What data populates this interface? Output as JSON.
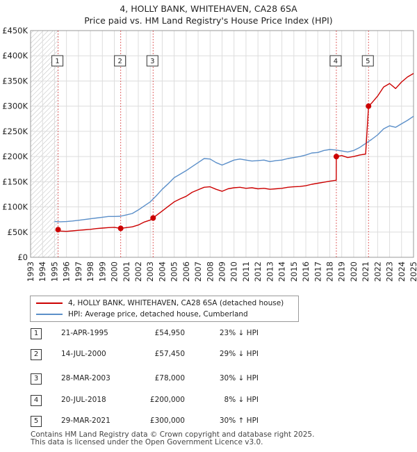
{
  "title": "4, HOLLY BANK, WHITEHAVEN, CA28 6SA",
  "subtitle": "Price paid vs. HM Land Registry's House Price Index (HPI)",
  "colors": {
    "property": "#cc0000",
    "hpi": "#5b8fc9",
    "grid": "#dddddd",
    "hatch": "#bbbbbb",
    "marker_line": "#cc0000"
  },
  "legend": {
    "property_label": "4, HOLLY BANK, WHITEHAVEN, CA28 6SA (detached house)",
    "hpi_label": "HPI: Average price, detached house, Cumberland"
  },
  "sales": [
    {
      "num": "1",
      "date": "21-APR-1995",
      "price": "£54,950",
      "hpi": "23% ↓ HPI"
    },
    {
      "num": "2",
      "date": "14-JUL-2000",
      "price": "£57,450",
      "hpi": "29% ↓ HPI"
    },
    {
      "num": "3",
      "date": "28-MAR-2003",
      "price": "£78,000",
      "hpi": "30% ↓ HPI"
    },
    {
      "num": "4",
      "date": "20-JUL-2018",
      "price": "£200,000",
      "hpi": "8% ↓ HPI"
    },
    {
      "num": "5",
      "date": "29-MAR-2021",
      "price": "£300,000",
      "hpi": "30% ↑ HPI"
    }
  ],
  "footer_line1": "Contains HM Land Registry data © Crown copyright and database right 2025.",
  "footer_line2": "This data is licensed under the Open Government Licence v3.0.",
  "chart_data": {
    "type": "line",
    "title": "4, HOLLY BANK, WHITEHAVEN, CA28 6SA",
    "subtitle": "Price paid vs. HM Land Registry's House Price Index (HPI)",
    "xlabel": "",
    "ylabel": "",
    "xlim": [
      1993,
      2025
    ],
    "ylim": [
      0,
      450000
    ],
    "grid": true,
    "legend_position": "bottom",
    "x_ticks": [
      "1993",
      "1994",
      "1995",
      "1996",
      "1997",
      "1998",
      "1999",
      "2000",
      "2001",
      "2002",
      "2003",
      "2004",
      "2005",
      "2006",
      "2007",
      "2008",
      "2009",
      "2010",
      "2011",
      "2012",
      "2013",
      "2014",
      "2015",
      "2016",
      "2017",
      "2018",
      "2019",
      "2020",
      "2021",
      "2022",
      "2023",
      "2024",
      "2025"
    ],
    "y_ticks": [
      {
        "value": 0,
        "label": "£0"
      },
      {
        "value": 50000,
        "label": "£50K"
      },
      {
        "value": 100000,
        "label": "£100K"
      },
      {
        "value": 150000,
        "label": "£150K"
      },
      {
        "value": 200000,
        "label": "£200K"
      },
      {
        "value": 250000,
        "label": "£250K"
      },
      {
        "value": 300000,
        "label": "£300K"
      },
      {
        "value": 350000,
        "label": "£350K"
      },
      {
        "value": 400000,
        "label": "£400K"
      },
      {
        "value": 450000,
        "label": "£450K"
      }
    ],
    "series": [
      {
        "name": "4, HOLLY BANK, WHITEHAVEN, CA28 6SA (detached house)",
        "color": "#cc0000",
        "points": [
          [
            1995.3,
            54950
          ],
          [
            1995.5,
            52000
          ],
          [
            1996,
            51500
          ],
          [
            1996.5,
            52500
          ],
          [
            1997,
            53500
          ],
          [
            1997.5,
            54500
          ],
          [
            1998,
            55500
          ],
          [
            1998.5,
            57000
          ],
          [
            1999,
            58000
          ],
          [
            1999.5,
            59000
          ],
          [
            2000,
            59500
          ],
          [
            2000.53,
            57450
          ],
          [
            2001,
            59000
          ],
          [
            2001.5,
            60500
          ],
          [
            2002,
            64000
          ],
          [
            2002.5,
            70000
          ],
          [
            2003,
            74000
          ],
          [
            2003.24,
            78000
          ],
          [
            2003.5,
            83000
          ],
          [
            2004,
            92000
          ],
          [
            2004.5,
            101000
          ],
          [
            2005,
            110000
          ],
          [
            2005.5,
            116000
          ],
          [
            2006,
            121000
          ],
          [
            2006.5,
            129000
          ],
          [
            2007,
            134000
          ],
          [
            2007.5,
            139000
          ],
          [
            2008,
            140000
          ],
          [
            2008.5,
            135000
          ],
          [
            2009,
            131000
          ],
          [
            2009.5,
            136000
          ],
          [
            2010,
            138000
          ],
          [
            2010.5,
            139000
          ],
          [
            2011,
            137000
          ],
          [
            2011.5,
            138000
          ],
          [
            2012,
            136000
          ],
          [
            2012.5,
            137000
          ],
          [
            2013,
            135000
          ],
          [
            2013.5,
            136000
          ],
          [
            2014,
            137000
          ],
          [
            2014.5,
            139000
          ],
          [
            2015,
            140000
          ],
          [
            2015.5,
            140500
          ],
          [
            2016,
            142000
          ],
          [
            2016.5,
            145000
          ],
          [
            2017,
            147000
          ],
          [
            2017.5,
            149000
          ],
          [
            2018,
            151000
          ],
          [
            2018.54,
            153000
          ],
          [
            2018.55,
            200000
          ],
          [
            2019,
            202000
          ],
          [
            2019.5,
            198000
          ],
          [
            2020,
            200000
          ],
          [
            2020.5,
            203000
          ],
          [
            2021,
            205000
          ],
          [
            2021.24,
            300000
          ],
          [
            2021.5,
            306000
          ],
          [
            2022,
            320000
          ],
          [
            2022.5,
            338000
          ],
          [
            2023,
            345000
          ],
          [
            2023.5,
            335000
          ],
          [
            2024,
            348000
          ],
          [
            2024.5,
            358000
          ],
          [
            2025,
            365000
          ]
        ]
      },
      {
        "name": "HPI: Average price, detached house, Cumberland",
        "color": "#5b8fc9",
        "points": [
          [
            1995,
            71000
          ],
          [
            1995.5,
            70500
          ],
          [
            1996,
            71000
          ],
          [
            1996.5,
            72000
          ],
          [
            1997,
            73500
          ],
          [
            1997.5,
            75000
          ],
          [
            1998,
            76500
          ],
          [
            1998.5,
            78000
          ],
          [
            1999,
            79500
          ],
          [
            1999.5,
            81000
          ],
          [
            2000,
            81000
          ],
          [
            2000.5,
            81500
          ],
          [
            2001,
            84000
          ],
          [
            2001.5,
            87000
          ],
          [
            2002,
            94000
          ],
          [
            2002.5,
            102000
          ],
          [
            2003,
            110000
          ],
          [
            2003.5,
            122000
          ],
          [
            2004,
            135000
          ],
          [
            2004.5,
            146000
          ],
          [
            2005,
            158000
          ],
          [
            2005.5,
            165000
          ],
          [
            2006,
            172000
          ],
          [
            2006.5,
            180000
          ],
          [
            2007,
            188000
          ],
          [
            2007.5,
            196000
          ],
          [
            2008,
            195000
          ],
          [
            2008.5,
            188000
          ],
          [
            2009,
            183000
          ],
          [
            2009.5,
            188000
          ],
          [
            2010,
            193000
          ],
          [
            2010.5,
            195000
          ],
          [
            2011,
            193000
          ],
          [
            2011.5,
            191000
          ],
          [
            2012,
            192000
          ],
          [
            2012.5,
            193000
          ],
          [
            2013,
            190000
          ],
          [
            2013.5,
            192000
          ],
          [
            2014,
            193000
          ],
          [
            2014.5,
            196000
          ],
          [
            2015,
            198000
          ],
          [
            2015.5,
            200000
          ],
          [
            2016,
            203000
          ],
          [
            2016.5,
            207000
          ],
          [
            2017,
            208000
          ],
          [
            2017.5,
            212000
          ],
          [
            2018,
            214000
          ],
          [
            2018.5,
            213000
          ],
          [
            2019,
            211000
          ],
          [
            2019.5,
            209000
          ],
          [
            2020,
            212000
          ],
          [
            2020.5,
            218000
          ],
          [
            2021,
            226000
          ],
          [
            2021.5,
            234000
          ],
          [
            2022,
            243000
          ],
          [
            2022.5,
            255000
          ],
          [
            2023,
            261000
          ],
          [
            2023.5,
            258000
          ],
          [
            2024,
            265000
          ],
          [
            2024.5,
            272000
          ],
          [
            2025,
            280000
          ]
        ]
      }
    ],
    "sale_markers": [
      {
        "label": "1",
        "x": 1995.3,
        "y": 54950
      },
      {
        "label": "2",
        "x": 2000.53,
        "y": 57450
      },
      {
        "label": "3",
        "x": 2003.24,
        "y": 78000
      },
      {
        "label": "4",
        "x": 2018.55,
        "y": 200000
      },
      {
        "label": "5",
        "x": 2021.24,
        "y": 300000
      }
    ],
    "hatched_ranges": [
      [
        1993,
        1995.3
      ],
      [
        2025,
        2025.2
      ]
    ]
  }
}
